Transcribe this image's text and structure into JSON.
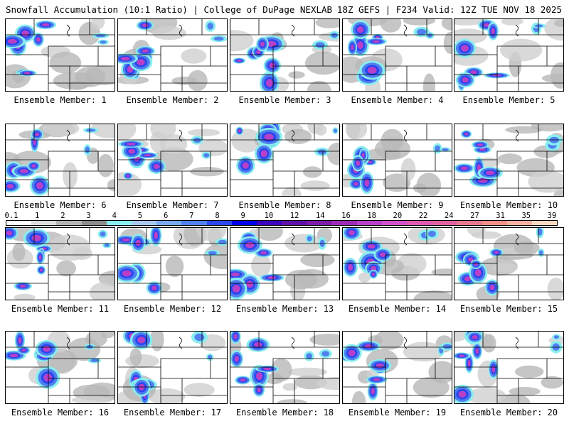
{
  "header": {
    "title": "Snowfall Accumulation (10:1 Ratio) | College of DuPage NEXLAB",
    "run_info": "18Z GEFS | F234 Valid: 12Z TUE NOV 18 2025"
  },
  "label_prefix": "Ensemble Member:",
  "members": [
    "1",
    "2",
    "3",
    "4",
    "5",
    "6",
    "7",
    "8",
    "9",
    "10",
    "11",
    "12",
    "13",
    "14",
    "15",
    "16",
    "17",
    "18",
    "19",
    "20"
  ],
  "scale": {
    "values": [
      "0.1",
      "1",
      "2",
      "3",
      "4",
      "5",
      "6",
      "7",
      "8",
      "9",
      "10",
      "12",
      "14",
      "16",
      "18",
      "20",
      "22",
      "24",
      "27",
      "31",
      "35",
      "39"
    ],
    "colors": [
      "#ffffff",
      "#dcdcdc",
      "#b4b4b4",
      "#8c8c8c",
      "#88eeee",
      "#a8c8f0",
      "#78a8f0",
      "#5080f0",
      "#2848f0",
      "#0000e8",
      "#3c00c0",
      "#6010a8",
      "#7c1ca8",
      "#9c2cb8",
      "#b840c8",
      "#d050c8",
      "#e058b0",
      "#e060a0",
      "#e87890",
      "#f09088",
      "#f4b0a0",
      "#f8d8c0"
    ]
  }
}
